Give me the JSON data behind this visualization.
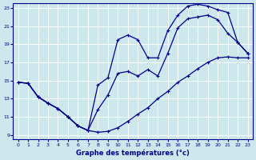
{
  "xlabel": "Graphe des températures (°c)",
  "bg_color": "#cde8ec",
  "grid_color": "#ffffff",
  "line_color": "#00008b",
  "xlim": [
    -0.5,
    23.5
  ],
  "ylim": [
    8.5,
    23.5
  ],
  "xticks": [
    0,
    1,
    2,
    3,
    4,
    5,
    6,
    7,
    8,
    9,
    10,
    11,
    12,
    13,
    14,
    15,
    16,
    17,
    18,
    19,
    20,
    21,
    22,
    23
  ],
  "yticks": [
    9,
    11,
    13,
    15,
    17,
    19,
    21,
    23
  ],
  "line1_x": [
    0,
    1,
    2,
    3,
    4,
    5,
    6,
    7,
    8,
    9,
    10,
    11,
    12,
    13,
    14,
    15,
    16,
    17,
    18,
    19,
    20,
    21,
    22,
    23
  ],
  "line1_y": [
    14.8,
    14.7,
    13.2,
    12.5,
    11.9,
    11.0,
    10.0,
    9.5,
    9.3,
    9.4,
    9.8,
    10.5,
    11.3,
    12.0,
    13.0,
    13.8,
    14.8,
    15.5,
    16.3,
    17.0,
    17.5,
    17.6,
    17.5,
    17.5
  ],
  "line2_x": [
    0,
    1,
    2,
    3,
    4,
    5,
    6,
    7,
    8,
    9,
    10,
    11,
    12,
    13,
    14,
    15,
    16,
    17,
    18,
    19,
    20,
    21,
    22,
    23
  ],
  "line2_y": [
    14.8,
    14.7,
    13.2,
    12.5,
    11.9,
    11.0,
    10.0,
    9.5,
    11.8,
    13.4,
    15.8,
    16.0,
    15.5,
    16.2,
    15.5,
    18.0,
    20.8,
    21.8,
    22.0,
    22.2,
    21.7,
    20.2,
    19.2,
    18.0
  ],
  "line3_x": [
    0,
    1,
    2,
    3,
    4,
    5,
    6,
    7,
    8,
    9,
    10,
    11,
    12,
    13,
    14,
    15,
    16,
    17,
    18,
    19,
    20,
    21,
    22,
    23
  ],
  "line3_y": [
    14.8,
    14.7,
    13.2,
    12.5,
    11.9,
    11.0,
    10.0,
    9.5,
    14.5,
    15.3,
    19.5,
    20.0,
    19.5,
    17.5,
    17.5,
    20.5,
    22.2,
    23.2,
    23.4,
    23.2,
    22.8,
    22.5,
    19.2,
    18.0
  ]
}
